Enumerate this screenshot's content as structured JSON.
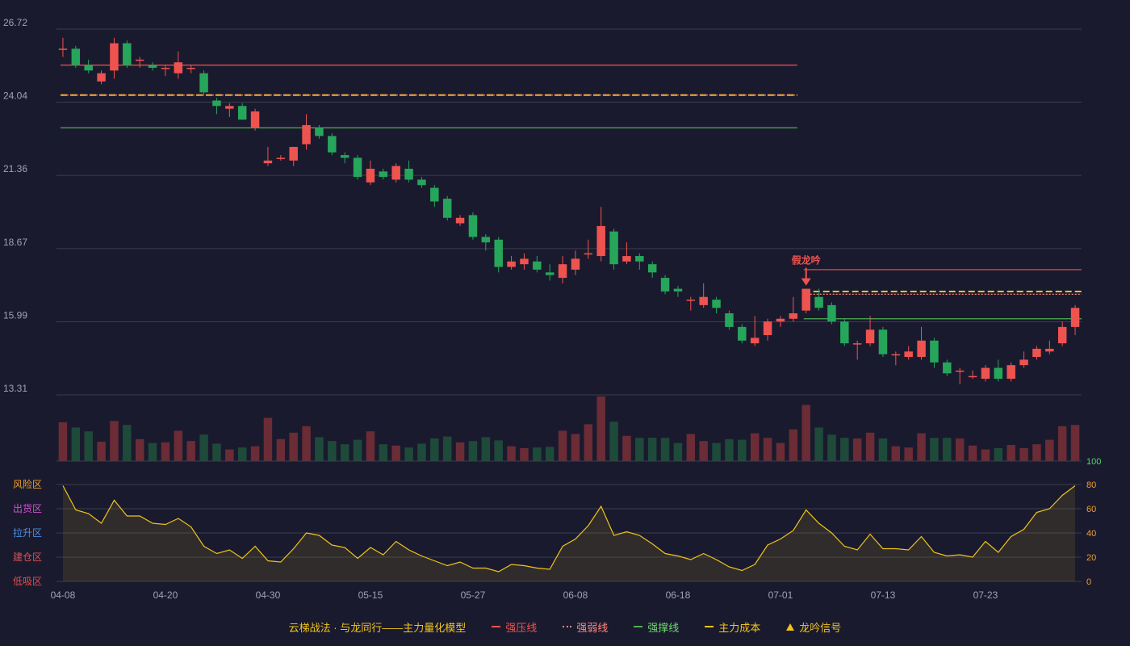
{
  "chart_data": {
    "type": "candlestick",
    "price_axis": {
      "ticks": [
        "26.72",
        "24.04",
        "21.36",
        "18.67",
        "15.99",
        "13.31"
      ],
      "range": [
        13.31,
        26.72
      ]
    },
    "x_ticks": [
      "04-08",
      "04-20",
      "04-30",
      "05-15",
      "05-27",
      "06-08",
      "06-18",
      "07-01",
      "07-13",
      "07-23"
    ],
    "x_tick_index": [
      0,
      8,
      16,
      24,
      32,
      40,
      48,
      56,
      64,
      72
    ],
    "candles": [
      [
        26.0,
        26.0,
        26.4,
        25.7
      ],
      [
        26.0,
        25.4,
        26.1,
        25.3
      ],
      [
        25.4,
        25.2,
        25.6,
        25.1
      ],
      [
        24.8,
        25.1,
        25.2,
        24.7
      ],
      [
        25.2,
        26.2,
        26.4,
        24.9
      ],
      [
        26.2,
        25.4,
        26.3,
        25.3
      ],
      [
        25.6,
        25.6,
        25.7,
        25.3
      ],
      [
        25.4,
        25.3,
        25.5,
        25.2
      ],
      [
        25.3,
        25.3,
        25.4,
        25.0
      ],
      [
        25.1,
        25.5,
        25.9,
        24.9
      ],
      [
        25.3,
        25.3,
        25.4,
        25.1
      ],
      [
        25.1,
        24.4,
        25.2,
        24.3
      ],
      [
        24.1,
        23.9,
        24.2,
        23.6
      ],
      [
        23.8,
        23.9,
        24.0,
        23.5
      ],
      [
        23.9,
        23.4,
        24.0,
        23.4
      ],
      [
        23.1,
        23.7,
        23.8,
        23.0
      ],
      [
        21.8,
        21.9,
        22.4,
        21.7
      ],
      [
        22.0,
        22.0,
        22.1,
        21.9
      ],
      [
        21.9,
        22.4,
        22.4,
        21.7
      ],
      [
        22.5,
        23.2,
        23.6,
        22.3
      ],
      [
        23.1,
        22.8,
        23.2,
        22.7
      ],
      [
        22.8,
        22.2,
        22.9,
        22.1
      ],
      [
        22.1,
        22.0,
        22.2,
        21.8
      ],
      [
        22.0,
        21.3,
        22.1,
        21.2
      ],
      [
        21.1,
        21.6,
        21.9,
        21.0
      ],
      [
        21.5,
        21.3,
        21.6,
        21.2
      ],
      [
        21.2,
        21.7,
        21.8,
        21.1
      ],
      [
        21.6,
        21.2,
        21.9,
        21.1
      ],
      [
        21.2,
        21.0,
        21.3,
        20.9
      ],
      [
        20.9,
        20.4,
        21.0,
        20.2
      ],
      [
        20.5,
        19.8,
        20.6,
        19.7
      ],
      [
        19.6,
        19.8,
        19.9,
        19.5
      ],
      [
        19.9,
        19.1,
        20.0,
        19.0
      ],
      [
        19.1,
        18.9,
        19.2,
        18.6
      ],
      [
        19.0,
        18.0,
        19.1,
        17.8
      ],
      [
        18.0,
        18.2,
        18.4,
        17.9
      ],
      [
        18.1,
        18.3,
        18.5,
        17.9
      ],
      [
        18.2,
        17.9,
        18.4,
        17.8
      ],
      [
        17.8,
        17.7,
        18.1,
        17.5
      ],
      [
        17.6,
        18.1,
        18.4,
        17.4
      ],
      [
        17.9,
        18.3,
        18.6,
        17.7
      ],
      [
        18.5,
        18.5,
        19.0,
        18.3
      ],
      [
        18.4,
        19.5,
        20.2,
        18.2
      ],
      [
        19.3,
        18.1,
        19.4,
        17.9
      ],
      [
        18.2,
        18.4,
        18.9,
        18.1
      ],
      [
        18.4,
        18.2,
        18.5,
        17.9
      ],
      [
        18.1,
        17.8,
        18.2,
        17.6
      ],
      [
        17.6,
        17.1,
        17.7,
        17.0
      ],
      [
        17.2,
        17.1,
        17.3,
        16.9
      ],
      [
        16.8,
        16.8,
        16.9,
        16.4
      ],
      [
        16.6,
        16.9,
        17.4,
        16.5
      ],
      [
        16.8,
        16.5,
        16.9,
        16.3
      ],
      [
        16.3,
        15.8,
        16.4,
        15.7
      ],
      [
        15.8,
        15.3,
        15.9,
        15.2
      ],
      [
        15.2,
        15.4,
        16.2,
        15.1
      ],
      [
        15.5,
        16.0,
        16.1,
        15.3
      ],
      [
        16.0,
        16.1,
        16.2,
        15.8
      ],
      [
        16.1,
        16.3,
        16.9,
        16.0
      ],
      [
        16.4,
        17.2,
        17.2,
        16.3
      ],
      [
        16.9,
        16.5,
        17.2,
        16.4
      ],
      [
        16.6,
        16.0,
        16.7,
        15.9
      ],
      [
        16.0,
        15.2,
        16.1,
        15.1
      ],
      [
        15.2,
        15.2,
        15.3,
        14.6
      ],
      [
        15.2,
        15.7,
        16.2,
        15.1
      ],
      [
        15.7,
        14.8,
        15.8,
        14.7
      ],
      [
        14.8,
        14.8,
        14.9,
        14.4
      ],
      [
        14.7,
        14.9,
        15.1,
        14.6
      ],
      [
        14.7,
        15.3,
        15.8,
        14.6
      ],
      [
        15.3,
        14.5,
        15.4,
        14.3
      ],
      [
        14.5,
        14.1,
        14.6,
        14.0
      ],
      [
        14.2,
        14.2,
        14.3,
        13.7
      ],
      [
        14.0,
        14.0,
        14.2,
        13.9
      ],
      [
        13.9,
        14.3,
        14.4,
        13.8
      ],
      [
        14.3,
        13.9,
        14.6,
        13.8
      ],
      [
        13.9,
        14.4,
        14.5,
        13.8
      ],
      [
        14.4,
        14.6,
        14.9,
        14.3
      ],
      [
        14.7,
        15.0,
        15.1,
        14.6
      ],
      [
        14.9,
        15.0,
        15.3,
        14.8
      ],
      [
        15.2,
        15.8,
        16.0,
        15.1
      ],
      [
        15.8,
        16.5,
        16.6,
        15.5
      ]
    ],
    "volume": {
      "axis_label": "100",
      "max": 100,
      "values": [
        60,
        52,
        46,
        30,
        62,
        56,
        34,
        28,
        29,
        47,
        31,
        41,
        27,
        18,
        21,
        23,
        67,
        34,
        44,
        54,
        37,
        31,
        26,
        33,
        46,
        26,
        24,
        21,
        27,
        35,
        38,
        29,
        31,
        37,
        32,
        23,
        20,
        21,
        22,
        47,
        42,
        57,
        100,
        61,
        39,
        36,
        36,
        36,
        28,
        42,
        31,
        28,
        34,
        33,
        43,
        36,
        28,
        49,
        87,
        52,
        41,
        36,
        35,
        44,
        35,
        23,
        21,
        43,
        36,
        36,
        35,
        24,
        18,
        20,
        25,
        20,
        26,
        33,
        54,
        56
      ]
    },
    "levels": [
      {
        "value": 25.4,
        "color": "#ef5350",
        "style": "solid",
        "from": 0,
        "to": 57
      },
      {
        "value": 24.3,
        "color": "#f0c419",
        "style": "dashed",
        "from": 0,
        "to": 57
      },
      {
        "value": 24.3,
        "color": "#ff8a80",
        "style": "dotted",
        "from": 0,
        "to": 57
      },
      {
        "value": 23.1,
        "color": "#4caf50",
        "style": "solid",
        "from": 0,
        "to": 57
      },
      {
        "value": 17.9,
        "color": "#ef5350",
        "style": "solid",
        "from": 58,
        "to": 79
      },
      {
        "value": 17.1,
        "color": "#f0c419",
        "style": "dashed",
        "from": 58,
        "to": 79
      },
      {
        "value": 17.0,
        "color": "#ff8a80",
        "style": "dotted",
        "from": 58,
        "to": 79
      },
      {
        "value": 16.1,
        "color": "#4caf50",
        "style": "solid",
        "from": 58,
        "to": 79
      }
    ],
    "signal": {
      "label": "假龙吟",
      "index": 58,
      "color": "#ef5350"
    },
    "indicator": {
      "ticks": [
        "80",
        "60",
        "40",
        "20",
        "0"
      ],
      "range": [
        0,
        80
      ],
      "zones": [
        {
          "label": "风险区",
          "color": "#f0a030"
        },
        {
          "label": "出货区",
          "color": "#d050d0"
        },
        {
          "label": "拉升区",
          "color": "#4a90e2"
        },
        {
          "label": "建仓区",
          "color": "#e05050"
        },
        {
          "label": "低吸区",
          "color": "#e05050"
        }
      ],
      "values": [
        79,
        59,
        56,
        48,
        67,
        54,
        54,
        48,
        47,
        52,
        45,
        29,
        23,
        26,
        19,
        29,
        17,
        16,
        27,
        40,
        38,
        30,
        28,
        19,
        28,
        22,
        33,
        26,
        21,
        17,
        13,
        16,
        11,
        11,
        8,
        14,
        13,
        11,
        10,
        29,
        35,
        46,
        62,
        38,
        41,
        38,
        31,
        23,
        21,
        18,
        23,
        18,
        12,
        9,
        14,
        30,
        35,
        42,
        59,
        48,
        40,
        29,
        26,
        39,
        27,
        27,
        26,
        37,
        24,
        21,
        22,
        20,
        33,
        24,
        37,
        43,
        57,
        60,
        71,
        79
      ]
    },
    "legend": {
      "title": "云梯战法 · 与龙同行——主力量化模型",
      "items": [
        {
          "label": "强压线",
          "color": "#ef5350",
          "style": "solid"
        },
        {
          "label": "强弱线",
          "color": "#ff8a80",
          "style": "dotted"
        },
        {
          "label": "强撑线",
          "color": "#4caf50",
          "style": "solid"
        },
        {
          "label": "主力成本",
          "color": "#f0c419",
          "style": "dashed"
        },
        {
          "label": "龙吟信号",
          "color": "#f0c419",
          "style": "triangle"
        }
      ]
    }
  },
  "colors": {
    "up": "#ef5350",
    "down": "#26a65b",
    "up_volume": "#6b2c35",
    "down_volume": "#1e4a3a",
    "grid": "#3a3d4a",
    "indicator_line": "#f0c419"
  }
}
